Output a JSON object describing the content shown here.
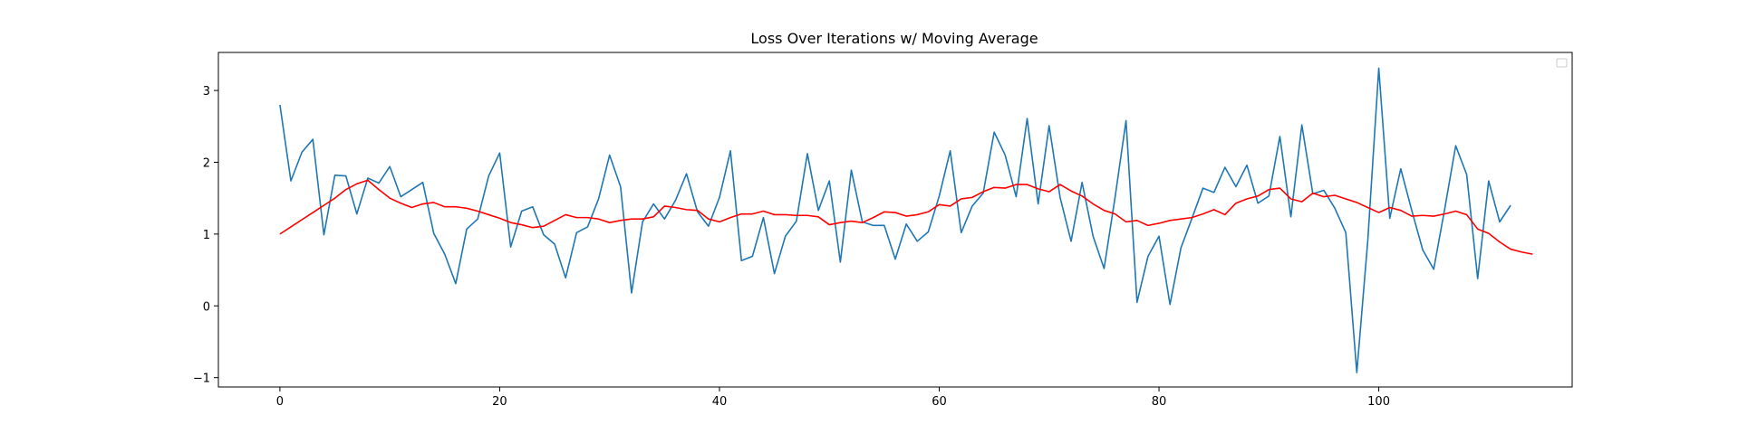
{
  "chart_data": {
    "type": "line",
    "title": "Loss Over Iterations w/ Moving Average",
    "xlabel": "",
    "ylabel": "",
    "xlim": [
      -5.6,
      117.6
    ],
    "ylim": [
      -1.13,
      3.53
    ],
    "x_ticks": [
      0,
      20,
      40,
      60,
      80,
      100
    ],
    "y_ticks": [
      -1,
      0,
      1,
      2,
      3
    ],
    "grid": false,
    "legend": {
      "placement": "top-right",
      "entries": []
    },
    "series": [
      {
        "color": "#1f77b4",
        "linewidth": 1.6,
        "x_start": 0,
        "values": [
          2.8,
          1.74,
          2.14,
          2.32,
          0.99,
          1.82,
          1.81,
          1.28,
          1.78,
          1.71,
          1.94,
          1.52,
          1.62,
          1.72,
          1.01,
          0.72,
          0.31,
          1.07,
          1.21,
          1.81,
          2.13,
          0.82,
          1.32,
          1.38,
          0.99,
          0.86,
          0.39,
          1.02,
          1.1,
          1.49,
          2.1,
          1.66,
          0.18,
          1.17,
          1.42,
          1.21,
          1.47,
          1.84,
          1.31,
          1.11,
          1.51,
          2.16,
          0.63,
          0.69,
          1.23,
          0.45,
          0.97,
          1.18,
          2.12,
          1.33,
          1.74,
          0.61,
          1.89,
          1.17,
          1.12,
          1.12,
          0.65,
          1.14,
          0.9,
          1.03,
          1.53,
          2.16,
          1.02,
          1.39,
          1.57,
          2.42,
          2.1,
          1.52,
          2.61,
          1.42,
          2.51,
          1.51,
          0.9,
          1.72,
          0.97,
          0.52,
          1.51,
          2.58,
          0.05,
          0.69,
          0.97,
          0.02,
          0.81,
          1.22,
          1.64,
          1.58,
          1.93,
          1.66,
          1.96,
          1.43,
          1.53,
          2.36,
          1.24,
          2.52,
          1.56,
          1.61,
          1.36,
          1.02,
          -0.93,
          0.91,
          3.31,
          1.22,
          1.91,
          1.33,
          0.78,
          0.51,
          1.35,
          2.23,
          1.83,
          0.38,
          1.74,
          1.17,
          1.4
        ]
      },
      {
        "color": "#ff0000",
        "linewidth": 1.6,
        "x_start": 0,
        "values": [
          1.0,
          1.1,
          1.2,
          1.3,
          1.4,
          1.5,
          1.62,
          1.7,
          1.75,
          1.62,
          1.5,
          1.43,
          1.37,
          1.42,
          1.44,
          1.38,
          1.38,
          1.36,
          1.32,
          1.27,
          1.22,
          1.16,
          1.13,
          1.09,
          1.11,
          1.19,
          1.27,
          1.23,
          1.23,
          1.21,
          1.16,
          1.19,
          1.21,
          1.21,
          1.24,
          1.39,
          1.37,
          1.34,
          1.33,
          1.21,
          1.17,
          1.23,
          1.28,
          1.28,
          1.32,
          1.27,
          1.27,
          1.26,
          1.26,
          1.24,
          1.13,
          1.16,
          1.18,
          1.16,
          1.23,
          1.31,
          1.3,
          1.25,
          1.27,
          1.31,
          1.41,
          1.39,
          1.49,
          1.51,
          1.59,
          1.65,
          1.64,
          1.69,
          1.69,
          1.63,
          1.59,
          1.69,
          1.6,
          1.53,
          1.42,
          1.33,
          1.28,
          1.17,
          1.19,
          1.12,
          1.15,
          1.19,
          1.21,
          1.23,
          1.28,
          1.34,
          1.27,
          1.43,
          1.49,
          1.53,
          1.62,
          1.64,
          1.49,
          1.45,
          1.57,
          1.52,
          1.54,
          1.49,
          1.44,
          1.37,
          1.3,
          1.37,
          1.33,
          1.25,
          1.26,
          1.25,
          1.28,
          1.32,
          1.27,
          1.07,
          1.01,
          0.89,
          0.79,
          0.75,
          0.72
        ]
      }
    ]
  }
}
